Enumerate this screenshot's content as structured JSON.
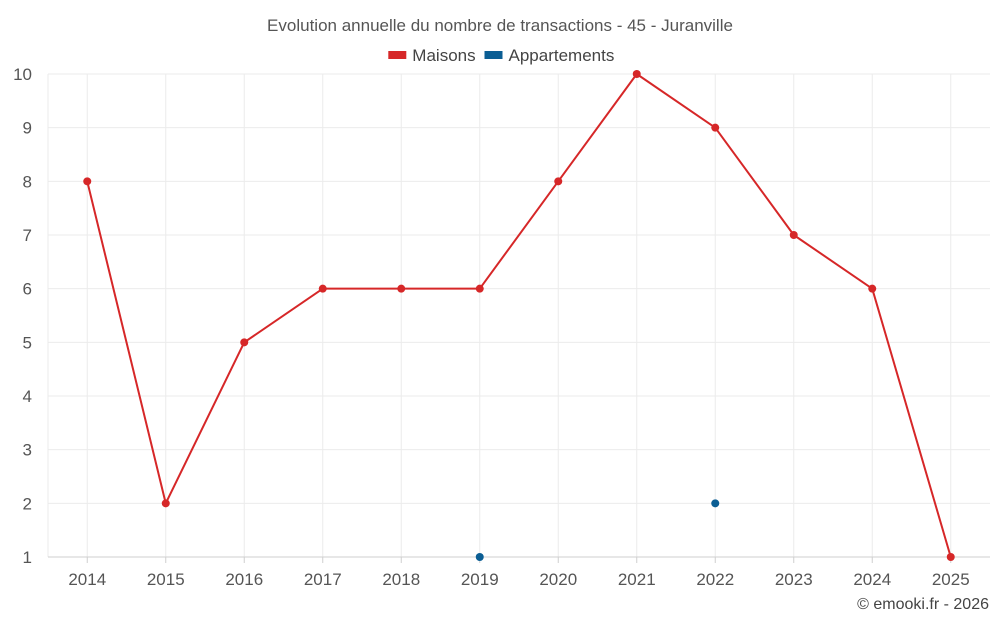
{
  "chart_data": {
    "type": "line",
    "title": "Evolution annuelle du nombre de transactions - 45 - Juranville",
    "categories": [
      "2014",
      "2015",
      "2016",
      "2017",
      "2018",
      "2019",
      "2020",
      "2021",
      "2022",
      "2023",
      "2024",
      "2025"
    ],
    "ylim": [
      1,
      10
    ],
    "yticks": [
      1,
      2,
      3,
      4,
      5,
      6,
      7,
      8,
      9,
      10
    ],
    "grid": true,
    "legend_position": "top-center",
    "series": [
      {
        "name": "Maisons",
        "color": "#d62728",
        "values": [
          8,
          2,
          5,
          6,
          6,
          6,
          8,
          10,
          9,
          7,
          6,
          1
        ]
      },
      {
        "name": "Appartements",
        "color": "#0b5e94",
        "values": [
          null,
          null,
          null,
          null,
          null,
          1,
          null,
          null,
          2,
          null,
          null,
          null
        ]
      }
    ],
    "xlabel": "",
    "ylabel": ""
  },
  "credit": "© emooki.fr - 2026"
}
